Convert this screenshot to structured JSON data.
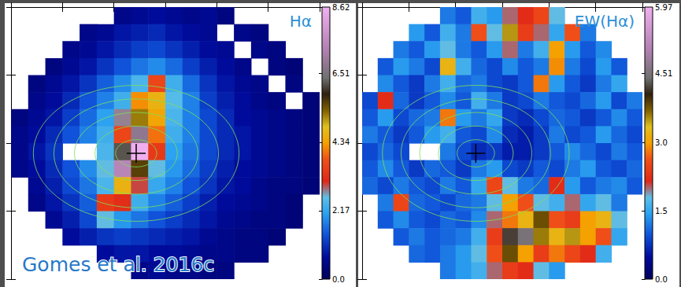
{
  "chart_data": [
    {
      "type": "heatmap",
      "title": "Hα",
      "annotations": [
        "Gomes et al. 2016c"
      ],
      "xlim": [
        0,
        18
      ],
      "xticks": [
        0,
        3,
        6,
        9,
        12,
        15,
        18
      ],
      "ylim": [
        0,
        16
      ],
      "yticks": [
        0,
        4,
        8,
        12,
        16
      ],
      "tick_labels": false,
      "colorbar": {
        "range": [
          0,
          8.62
        ],
        "ticks": [
          8.62,
          6.51,
          4.34,
          2.17,
          {
            "value": 0,
            "label": "0.0"
          }
        ]
      },
      "cells": [
        [
          null,
          null,
          null,
          null,
          null,
          null,
          0.5,
          0.6,
          0.7,
          0.6,
          0.5,
          0.6,
          0.4,
          null,
          null,
          null,
          null,
          null
        ],
        [
          null,
          null,
          null,
          null,
          0.5,
          0.6,
          0.8,
          0.9,
          1.0,
          0.8,
          0.7,
          0.6,
          null,
          0.5,
          0.4,
          null,
          null,
          null
        ],
        [
          null,
          null,
          null,
          0.5,
          0.6,
          0.8,
          1.0,
          1.2,
          1.3,
          1.1,
          0.9,
          0.7,
          0.6,
          null,
          0.5,
          0.4,
          null,
          null
        ],
        [
          null,
          null,
          0.4,
          0.6,
          0.8,
          1.1,
          1.4,
          1.7,
          1.9,
          1.6,
          1.2,
          0.9,
          0.7,
          0.5,
          null,
          0.4,
          0.3,
          null
        ],
        [
          null,
          0.4,
          0.6,
          0.8,
          1.1,
          1.5,
          1.9,
          2.4,
          3.6,
          2.3,
          1.6,
          1.1,
          0.8,
          0.6,
          0.5,
          null,
          0.4,
          null
        ],
        [
          null,
          0.5,
          0.7,
          1.0,
          1.4,
          1.8,
          2.3,
          4.2,
          4.6,
          2.5,
          1.8,
          1.2,
          0.9,
          0.7,
          0.5,
          0.4,
          null,
          0.3
        ],
        [
          0.4,
          0.6,
          0.8,
          1.2,
          1.6,
          2.1,
          2.8,
          5.2,
          4.4,
          2.4,
          1.8,
          1.3,
          1.0,
          0.7,
          0.6,
          0.5,
          0.4,
          0.3
        ],
        [
          0.5,
          0.7,
          1.0,
          1.4,
          1.8,
          2.3,
          3.6,
          6.8,
          4.0,
          2.3,
          1.8,
          1.3,
          1.0,
          0.8,
          0.6,
          0.5,
          0.4,
          0.3
        ],
        [
          0.5,
          0.8,
          1.1,
          null,
          null,
          2.4,
          6.2,
          8.6,
          3.4,
          2.1,
          1.7,
          1.3,
          1.0,
          0.8,
          0.6,
          0.5,
          0.4,
          0.3
        ],
        [
          0.5,
          0.7,
          1.0,
          1.4,
          1.9,
          2.6,
          7.4,
          5.6,
          2.6,
          2.0,
          1.6,
          1.2,
          0.9,
          0.7,
          0.6,
          0.5,
          0.4,
          0.3
        ],
        [
          null,
          0.6,
          0.9,
          1.3,
          1.7,
          2.4,
          4.6,
          3.0,
          2.2,
          1.8,
          1.4,
          1.1,
          0.8,
          0.7,
          0.5,
          0.4,
          0.4,
          0.3
        ],
        [
          null,
          0.5,
          0.8,
          1.1,
          1.5,
          3.4,
          3.2,
          2.3,
          1.8,
          1.5,
          1.2,
          0.9,
          0.7,
          0.6,
          0.5,
          0.4,
          0.3,
          null
        ],
        [
          null,
          null,
          0.6,
          0.9,
          1.3,
          2.6,
          2.0,
          1.7,
          1.4,
          1.2,
          1.0,
          0.8,
          0.6,
          0.5,
          0.4,
          0.4,
          0.3,
          null
        ],
        [
          null,
          null,
          null,
          0.7,
          0.9,
          1.1,
          1.2,
          1.1,
          1.0,
          0.9,
          0.8,
          0.6,
          0.5,
          0.4,
          0.4,
          0.3,
          null,
          null
        ],
        [
          null,
          null,
          null,
          null,
          null,
          0.7,
          0.8,
          0.8,
          0.7,
          0.7,
          0.6,
          0.5,
          0.5,
          0.4,
          0.4,
          null,
          null,
          null
        ],
        [
          null,
          null,
          null,
          null,
          null,
          null,
          null,
          0.5,
          0.6,
          0.5,
          0.5,
          0.4,
          0.4,
          null,
          null,
          null,
          null,
          null
        ]
      ]
    },
    {
      "type": "heatmap",
      "title": "EW(Hα)",
      "xlim": [
        0,
        18
      ],
      "xticks": [
        0,
        3,
        6,
        9,
        12,
        15,
        18
      ],
      "ylim": [
        0,
        16
      ],
      "yticks": [
        0,
        4,
        8,
        12,
        16
      ],
      "tick_labels": false,
      "colorbar": {
        "range": [
          0,
          5.97
        ],
        "ticks": [
          5.97,
          4.51,
          {
            "value": 3,
            "label": "3.0"
          },
          1.5,
          {
            "value": 0,
            "label": "0.0"
          }
        ]
      },
      "cells": [
        [
          null,
          null,
          null,
          null,
          null,
          1.2,
          1.0,
          1.6,
          1.4,
          2.0,
          2.2,
          2.5,
          1.8,
          null,
          null,
          null,
          null,
          null
        ],
        [
          null,
          null,
          null,
          1.4,
          1.0,
          1.6,
          1.2,
          2.6,
          1.8,
          3.5,
          2.4,
          2.0,
          1.5,
          2.6,
          1.2,
          null,
          null,
          null
        ],
        [
          null,
          null,
          1.2,
          1.0,
          1.4,
          1.8,
          1.2,
          1.0,
          1.4,
          2.0,
          1.2,
          1.6,
          3.0,
          1.4,
          1.0,
          1.3,
          null,
          null
        ],
        [
          null,
          1.0,
          1.4,
          1.2,
          0.9,
          3.2,
          1.6,
          1.1,
          0.9,
          1.3,
          1.0,
          1.2,
          2.9,
          1.2,
          0.9,
          1.4,
          1.0,
          null
        ],
        [
          null,
          1.3,
          1.0,
          0.8,
          1.2,
          1.6,
          1.1,
          1.2,
          0.9,
          0.8,
          1.0,
          2.8,
          1.4,
          1.0,
          0.8,
          1.2,
          1.5,
          null
        ],
        [
          0.9,
          2.2,
          1.1,
          0.8,
          1.0,
          1.3,
          1.0,
          1.6,
          1.2,
          0.8,
          0.9,
          1.2,
          1.0,
          0.9,
          1.1,
          1.4,
          0.9,
          1.2
        ],
        [
          1.0,
          1.4,
          0.9,
          1.1,
          1.2,
          2.8,
          1.4,
          1.2,
          1.5,
          0.8,
          0.7,
          0.9,
          1.1,
          1.0,
          0.8,
          1.0,
          1.3,
          1.0
        ],
        [
          1.2,
          1.0,
          0.8,
          1.0,
          1.4,
          1.6,
          1.0,
          0.9,
          1.3,
          0.7,
          0.6,
          0.8,
          1.2,
          0.9,
          1.0,
          1.4,
          1.1,
          0.9
        ],
        [
          0.9,
          1.1,
          0.9,
          null,
          null,
          1.2,
          0.9,
          0.7,
          0.8,
          0.6,
          0.6,
          0.8,
          1.0,
          1.3,
          1.1,
          0.9,
          1.2,
          1.0
        ],
        [
          1.0,
          1.3,
          1.0,
          0.8,
          1.1,
          1.0,
          0.8,
          1.2,
          1.4,
          0.9,
          0.8,
          1.0,
          0.9,
          1.2,
          1.4,
          1.0,
          0.9,
          1.1
        ],
        [
          1.1,
          0.9,
          1.2,
          1.0,
          0.9,
          1.2,
          1.0,
          1.5,
          2.5,
          1.8,
          1.2,
          1.1,
          2.2,
          1.4,
          1.0,
          1.2,
          1.3,
          1.0
        ],
        [
          null,
          1.2,
          2.5,
          1.1,
          1.0,
          0.9,
          1.1,
          1.2,
          1.8,
          3.0,
          2.6,
          1.8,
          1.6,
          2.0,
          1.5,
          1.8,
          1.2,
          null
        ],
        [
          null,
          1.0,
          1.3,
          1.0,
          0.9,
          1.1,
          1.0,
          1.3,
          2.0,
          2.8,
          3.2,
          3.8,
          2.6,
          2.4,
          3.0,
          3.2,
          1.8,
          null
        ],
        [
          null,
          null,
          1.0,
          1.2,
          1.0,
          1.1,
          1.2,
          1.6,
          2.4,
          4.2,
          4.5,
          3.6,
          3.2,
          3.5,
          3.0,
          2.6,
          1.5,
          null
        ],
        [
          null,
          null,
          null,
          1.1,
          1.0,
          1.2,
          1.4,
          1.8,
          2.6,
          3.8,
          3.0,
          2.4,
          2.8,
          2.5,
          2.2,
          1.6,
          null,
          null
        ],
        [
          null,
          null,
          null,
          null,
          null,
          1.2,
          1.4,
          1.6,
          2.0,
          2.4,
          2.2,
          1.8,
          1.4,
          null,
          null,
          null,
          null,
          null
        ]
      ]
    }
  ]
}
